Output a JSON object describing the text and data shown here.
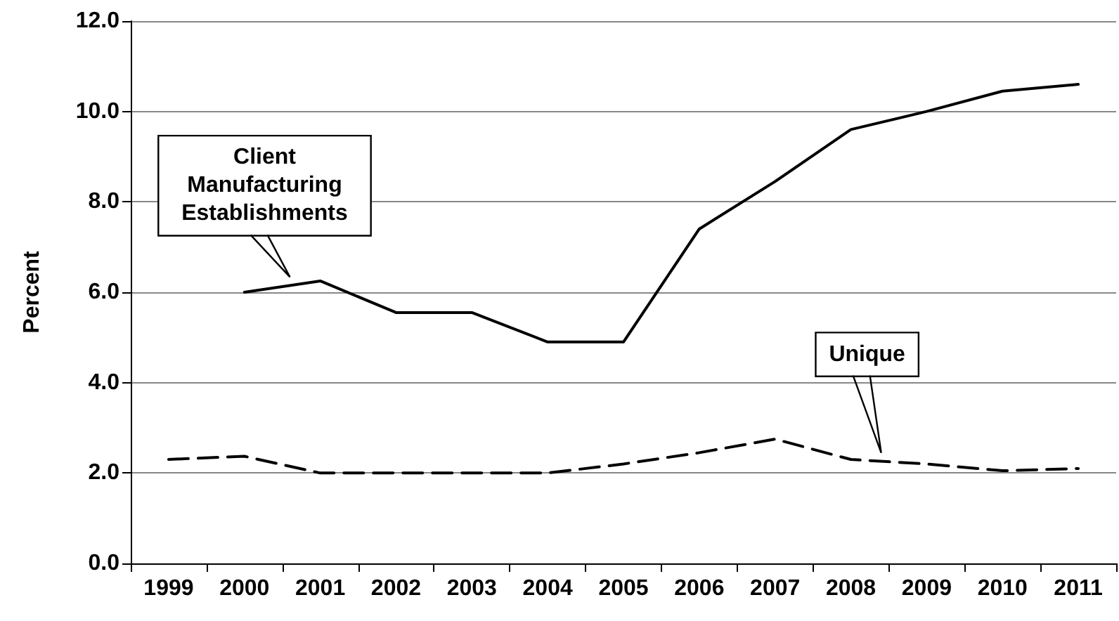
{
  "chart_data": {
    "type": "line",
    "ylabel": "Percent",
    "categories": [
      "1999",
      "2000",
      "2001",
      "2002",
      "2003",
      "2004",
      "2005",
      "2006",
      "2007",
      "2008",
      "2009",
      "2010",
      "2011"
    ],
    "series": [
      {
        "name": "Client Manufacturing Establishments",
        "color": "#000000",
        "line_style": "solid",
        "values": [
          null,
          6.0,
          6.25,
          5.55,
          5.55,
          4.9,
          4.9,
          7.4,
          8.45,
          9.6,
          10.0,
          10.45,
          10.6
        ]
      },
      {
        "name": "Unique",
        "color": "#000000",
        "line_style": "dashed",
        "values": [
          2.3,
          2.37,
          2.0,
          2.0,
          2.0,
          2.0,
          2.2,
          2.45,
          2.75,
          2.3,
          2.2,
          2.05,
          2.1
        ]
      }
    ],
    "ylim": [
      0,
      12
    ],
    "yticks": [
      {
        "value": 0,
        "label": "0.0"
      },
      {
        "value": 2,
        "label": "2.0"
      },
      {
        "value": 4,
        "label": "4.0"
      },
      {
        "value": 6,
        "label": "6.0"
      },
      {
        "value": 8,
        "label": "8.0"
      },
      {
        "value": 10,
        "label": "10.0"
      },
      {
        "value": 12,
        "label": "12.0"
      }
    ],
    "grid": "y",
    "legend": false,
    "marker": "none"
  }
}
